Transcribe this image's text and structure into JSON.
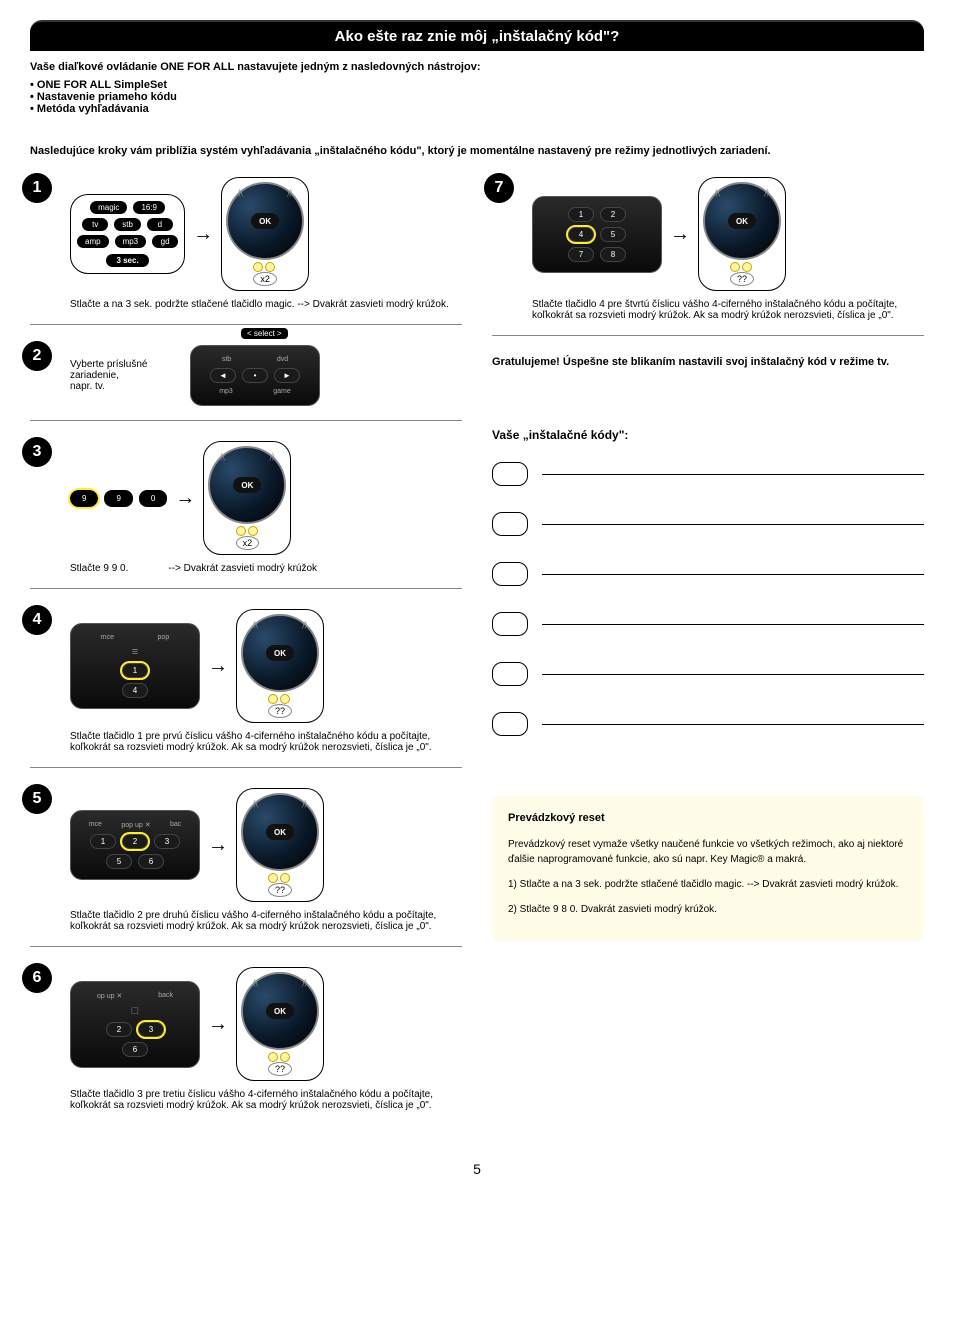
{
  "title": "Ako ešte raz znie môj „inštalačný kód\"?",
  "intro_lead": "Vaše diaľkové ovládanie ONE FOR ALL nastavujete jedným z nasledovných nástrojov:",
  "bullets": [
    "• ONE FOR ALL SimpleSet",
    "• Nastavenie priameho kódu",
    "• Metóda vyhľadávania"
  ],
  "sub_intro": "Nasledujúce kroky vám priblížia systém vyhľadávania „inštalačného kódu\", ktorý je momentálne nastavený pre režimy jednotlivých zariadení.",
  "ok_label": "OK",
  "arrow": "→",
  "steps": {
    "s1": {
      "num": "1",
      "btns_r1": [
        "magic",
        "16:9"
      ],
      "btns_r2": [
        "tv",
        "stb",
        "d"
      ],
      "btns_r3": [
        "amp",
        "mp3",
        "gd"
      ],
      "sec": "3 sec.",
      "badge": "x2",
      "caption": "Stlačte a na 3 sek. podržte stlačené tlačidlo magic. --> Dvakrát zasvieti modrý krúžok."
    },
    "s2": {
      "num": "2",
      "select": "< select >",
      "text1": "Vyberte príslušné zariadenie,",
      "text2": "napr. tv.",
      "labels": [
        "stb",
        "dvd"
      ],
      "labels2": [
        "mp3",
        "game"
      ]
    },
    "s3": {
      "num": "3",
      "btns": [
        "9",
        "9",
        "0"
      ],
      "badge": "x2",
      "cap_left": "Stlačte 9 9 0.",
      "cap_right": "--> Dvakrát zasvieti modrý krúžok"
    },
    "s4": {
      "num": "4",
      "labels": [
        "mce",
        "pop"
      ],
      "btns_r1": [
        "1"
      ],
      "btns_r2": [
        "4"
      ],
      "badge": "??",
      "caption": "Stlačte tlačidlo 1  pre prvú číslicu vášho 4-ciferného inštalačného kódu a počítajte, koľkokrát sa rozsvieti modrý krúžok. Ak sa modrý krúžok nerozsvieti, číslica je „0\"."
    },
    "s5": {
      "num": "5",
      "labels": [
        "mce",
        "pop up ✕",
        "bac"
      ],
      "btns_r1": [
        "1",
        "2",
        "3"
      ],
      "btns_r2": [
        "5",
        "6"
      ],
      "badge": "??",
      "caption": "Stlačte tlačidlo 2  pre druhú číslicu vášho 4-ciferného inštalačného kódu a počítajte, koľkokrát sa rozsvieti modrý krúžok. Ak sa modrý krúžok nerozsvieti, číslica je „0\"."
    },
    "s6": {
      "num": "6",
      "labels": [
        "op up ✕",
        "back"
      ],
      "btns_r1": [
        "2",
        "3"
      ],
      "btns_r2": [
        "6"
      ],
      "badge": "??",
      "caption": "Stlačte tlačidlo 3  pre tretiu číslicu vášho 4-ciferného inštalačného kódu a počítajte, koľkokrát sa rozsvieti modrý krúžok. Ak sa modrý krúžok nerozsvieti, číslica je „0\"."
    },
    "s7": {
      "num": "7",
      "btns_r1": [
        "1",
        "2"
      ],
      "btns_r2": [
        "4",
        "5"
      ],
      "btns_r3": [
        "7",
        "8"
      ],
      "badge": "??",
      "caption": "Stlačte tlačidlo 4  pre štvrtú číslicu vášho 4-ciferného inštalačného kódu a počítajte, koľkokrát sa rozsvieti modrý krúžok. Ak sa modrý krúžok nerozsvieti, číslica je „0\"."
    }
  },
  "congrats": "Gratulujeme! Úspešne ste blikaním nastavili svoj inštalačný kód v režime tv.",
  "codes_header": "Vaše „inštalačné kódy\":",
  "reset": {
    "title": "Prevádzkový reset",
    "p1": "Prevádzkový reset vymaže všetky naučené funkcie vo všetkých režimoch, ako aj niektoré ďalšie naprogramované funkcie, ako sú napr. Key Magic® a makrá.",
    "p2": "1)    Stlačte a na 3 sek. podržte stlačené tlačidlo magic. --> Dvakrát zasvieti modrý krúžok.",
    "p3": "2)    Stlačte 9 8 0. Dvakrát zasvieti modrý krúžok."
  },
  "page_num": "5"
}
